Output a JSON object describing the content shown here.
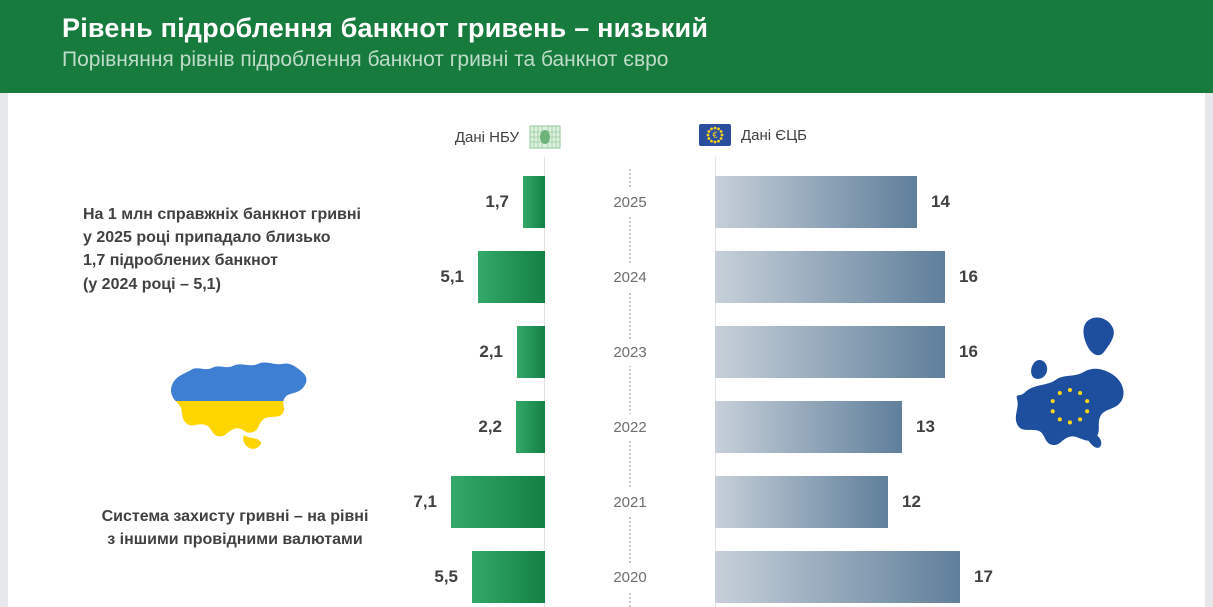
{
  "header": {
    "title": "Рівень підроблення банкнот гривень – низький",
    "subtitle": "Порівняння рівнів підроблення банкнот гривні та банкнот євро"
  },
  "notes": {
    "top": "На 1 млн справжніх банкнот гривні\nу 2025 році припадало близько\n1,7 підроблених банкнот\n(у 2024 році – 5,1)",
    "bottom": "Система захисту гривні – на рівні\nз іншими провідними валютами"
  },
  "chart_data": {
    "type": "bar",
    "variant": "diverging-horizontal",
    "title": "Порівняння рівнів підроблення банкнот гривні та банкнот євро",
    "categories": [
      "2025",
      "2024",
      "2023",
      "2022",
      "2021",
      "2020"
    ],
    "series": [
      {
        "name": "Дані НБУ",
        "values": [
          1.7,
          5.1,
          2.1,
          2.2,
          7.1,
          5.5
        ],
        "color_from": "#33a968",
        "color_to": "#148045"
      },
      {
        "name": "Дані ЄЦБ",
        "values": [
          14,
          16,
          16,
          13,
          12,
          17
        ],
        "color_from": "#c7d0d9",
        "color_to": "#5f7f9b"
      }
    ],
    "value_labels": {
      "nbu": [
        "1,7",
        "5,1",
        "2,1",
        "2,2",
        "7,1",
        "5,5"
      ],
      "ecb": [
        "14",
        "16",
        "16",
        "13",
        "12",
        "17"
      ]
    },
    "legend_position": "top",
    "grid": false
  },
  "colors": {
    "header_bg": "#177b3e",
    "subtitle_text": "#bfdcc9",
    "page_bg": "#e7e8e9",
    "value_text": "#414042",
    "year_text": "#6d6e71",
    "ukraine_blue": "#3f7fd3",
    "ukraine_yellow": "#ffd500",
    "eu_blue": "#1d4f9e",
    "eu_star_yellow": "#ffd617"
  }
}
